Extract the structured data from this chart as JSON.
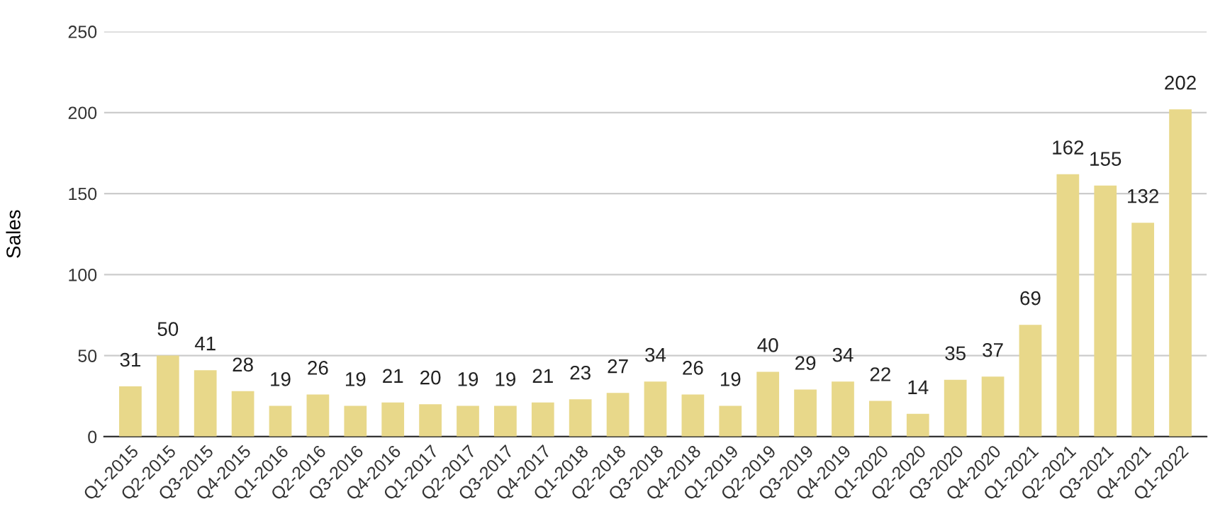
{
  "chart_data": {
    "type": "bar",
    "ylabel": "Sales",
    "categories": [
      "Q1-2015",
      "Q2-2015",
      "Q3-2015",
      "Q4-2015",
      "Q1-2016",
      "Q2-2016",
      "Q3-2016",
      "Q4-2016",
      "Q1-2017",
      "Q2-2017",
      "Q3-2017",
      "Q4-2017",
      "Q1-2018",
      "Q2-2018",
      "Q3-2018",
      "Q4-2018",
      "Q1-2019",
      "Q2-2019",
      "Q3-2019",
      "Q4-2019",
      "Q1-2020",
      "Q2-2020",
      "Q3-2020",
      "Q4-2020",
      "Q1-2021",
      "Q2-2021",
      "Q3-2021",
      "Q4-2021",
      "Q1-2022"
    ],
    "values": [
      31,
      50,
      41,
      28,
      19,
      26,
      19,
      21,
      20,
      19,
      19,
      21,
      23,
      27,
      34,
      26,
      19,
      40,
      29,
      34,
      22,
      14,
      35,
      37,
      69,
      162,
      155,
      132,
      202
    ],
    "color": "#e8d88a",
    "ylim": [
      0,
      250
    ],
    "yticks": [
      0,
      50,
      100,
      150,
      200,
      250
    ],
    "grid": "y",
    "data_labels": true
  }
}
